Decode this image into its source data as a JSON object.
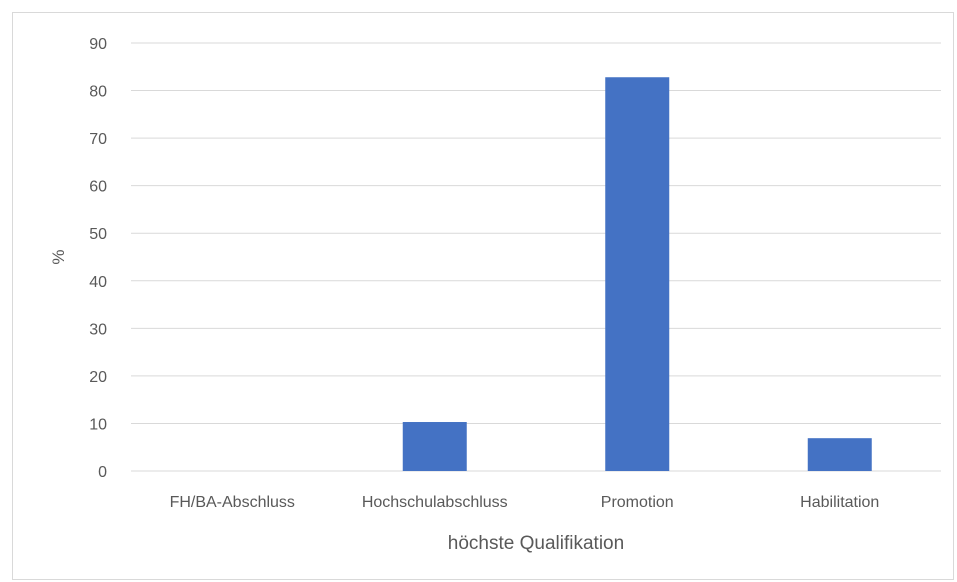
{
  "chart_data": {
    "type": "bar",
    "title": "",
    "xlabel": "höchste Qualifikation",
    "ylabel": "%",
    "categories": [
      "FH/BA-Abschluss",
      "Hochschulabschluss",
      "Promotion",
      "Habilitation"
    ],
    "values": [
      0,
      10.3,
      82.8,
      6.9
    ],
    "ylim": [
      0,
      90
    ],
    "yticks": [
      "0",
      "10",
      "20",
      "30",
      "40",
      "50",
      "60",
      "70",
      "80",
      "90"
    ],
    "grid": true,
    "legend": "none",
    "bar_color": "#4472c4",
    "grid_color": "#d9d9d9"
  }
}
